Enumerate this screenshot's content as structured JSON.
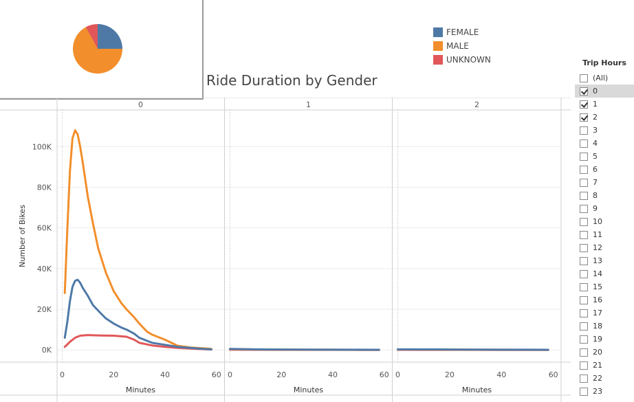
{
  "chart_data": {
    "type": "line",
    "title": "Ride Duration by Gender",
    "xlabel": "Minutes",
    "ylabel": "Number of Bikes",
    "ylim": [
      -6000,
      118000
    ],
    "xlim": [
      -2,
      63
    ],
    "yticks": [
      0,
      20000,
      40000,
      60000,
      80000,
      100000
    ],
    "ytick_labels": [
      "0K",
      "20K",
      "40K",
      "60K",
      "80K",
      "100K"
    ],
    "xticks": [
      0,
      20,
      40,
      60
    ],
    "xtick_labels": [
      "0",
      "20",
      "40",
      "60"
    ],
    "panel_variable": "Trip Hours",
    "panels": [
      {
        "label": "0",
        "series": [
          {
            "name": "FEMALE",
            "color": "#4e79a7",
            "points": [
              [
                1,
                6000
              ],
              [
                2,
                14000
              ],
              [
                3,
                24000
              ],
              [
                4,
                31000
              ],
              [
                5,
                34000
              ],
              [
                6,
                34500
              ],
              [
                7,
                33000
              ],
              [
                8,
                30500
              ],
              [
                10,
                26500
              ],
              [
                12,
                22000
              ],
              [
                15,
                18000
              ],
              [
                17,
                15500
              ],
              [
                20,
                13000
              ],
              [
                23,
                11000
              ],
              [
                25,
                10000
              ],
              [
                28,
                8000
              ],
              [
                30,
                6000
              ],
              [
                35,
                3500
              ],
              [
                40,
                2500
              ],
              [
                45,
                1500
              ],
              [
                50,
                1000
              ],
              [
                55,
                500
              ],
              [
                58,
                300
              ]
            ]
          },
          {
            "name": "MALE",
            "color": "#f28e2b",
            "points": [
              [
                1,
                28000
              ],
              [
                2,
                60000
              ],
              [
                3,
                88000
              ],
              [
                4,
                104000
              ],
              [
                5,
                108000
              ],
              [
                6,
                106000
              ],
              [
                7,
                100000
              ],
              [
                8,
                92000
              ],
              [
                10,
                75000
              ],
              [
                12,
                62000
              ],
              [
                14,
                50000
              ],
              [
                17,
                38000
              ],
              [
                20,
                29000
              ],
              [
                23,
                23000
              ],
              [
                25,
                20000
              ],
              [
                28,
                16000
              ],
              [
                30,
                13000
              ],
              [
                33,
                9000
              ],
              [
                35,
                7500
              ],
              [
                40,
                5000
              ],
              [
                45,
                2000
              ],
              [
                50,
                1200
              ],
              [
                55,
                800
              ],
              [
                58,
                500
              ]
            ]
          },
          {
            "name": "UNKNOWN",
            "color": "#e15759",
            "points": [
              [
                1,
                1500
              ],
              [
                3,
                4000
              ],
              [
                5,
                6000
              ],
              [
                7,
                7000
              ],
              [
                10,
                7300
              ],
              [
                12,
                7200
              ],
              [
                15,
                7100
              ],
              [
                20,
                7000
              ],
              [
                25,
                6500
              ],
              [
                28,
                5000
              ],
              [
                30,
                3500
              ],
              [
                35,
                2200
              ],
              [
                40,
                1500
              ],
              [
                45,
                1000
              ],
              [
                50,
                700
              ],
              [
                55,
                400
              ],
              [
                58,
                200
              ]
            ]
          }
        ]
      },
      {
        "label": "1",
        "series": [
          {
            "name": "FEMALE",
            "color": "#4e79a7",
            "points": [
              [
                0,
                500
              ],
              [
                10,
                300
              ],
              [
                20,
                200
              ],
              [
                30,
                150
              ],
              [
                40,
                120
              ],
              [
                50,
                100
              ],
              [
                58,
                80
              ]
            ]
          },
          {
            "name": "MALE",
            "color": "#f28e2b",
            "points": [
              [
                0,
                400
              ],
              [
                10,
                250
              ],
              [
                20,
                150
              ],
              [
                30,
                120
              ],
              [
                40,
                100
              ],
              [
                50,
                80
              ],
              [
                58,
                60
              ]
            ]
          },
          {
            "name": "UNKNOWN",
            "color": "#e15759",
            "points": [
              [
                0,
                100
              ],
              [
                10,
                80
              ],
              [
                20,
                60
              ],
              [
                30,
                50
              ],
              [
                40,
                40
              ],
              [
                50,
                30
              ],
              [
                58,
                20
              ]
            ]
          }
        ]
      },
      {
        "label": "2",
        "series": [
          {
            "name": "FEMALE",
            "color": "#4e79a7",
            "points": [
              [
                0,
                300
              ],
              [
                10,
                250
              ],
              [
                20,
                200
              ],
              [
                30,
                150
              ],
              [
                40,
                120
              ],
              [
                50,
                100
              ],
              [
                58,
                80
              ]
            ]
          },
          {
            "name": "MALE",
            "color": "#f28e2b",
            "points": [
              [
                0,
                250
              ],
              [
                10,
                200
              ],
              [
                20,
                150
              ],
              [
                30,
                120
              ],
              [
                40,
                100
              ],
              [
                50,
                80
              ],
              [
                58,
                60
              ]
            ]
          },
          {
            "name": "UNKNOWN",
            "color": "#e15759",
            "points": [
              [
                0,
                80
              ],
              [
                10,
                60
              ],
              [
                20,
                50
              ],
              [
                30,
                40
              ],
              [
                40,
                30
              ],
              [
                50,
                20
              ],
              [
                58,
                10
              ]
            ]
          }
        ]
      }
    ],
    "pie": {
      "slices": [
        {
          "name": "FEMALE",
          "value": 25,
          "color": "#4e79a7"
        },
        {
          "name": "MALE",
          "value": 67,
          "color": "#f28e2b"
        },
        {
          "name": "UNKNOWN",
          "value": 8,
          "color": "#e15759"
        }
      ]
    },
    "legend": [
      {
        "label": "FEMALE",
        "color": "#4e79a7"
      },
      {
        "label": "MALE",
        "color": "#f28e2b"
      },
      {
        "label": "UNKNOWN",
        "color": "#e15759"
      }
    ]
  },
  "filter": {
    "title": "Trip Hours",
    "items": [
      {
        "label": "(All)",
        "checked": false
      },
      {
        "label": "0",
        "checked": true,
        "selected": true
      },
      {
        "label": "1",
        "checked": true
      },
      {
        "label": "2",
        "checked": true
      },
      {
        "label": "3",
        "checked": false
      },
      {
        "label": "4",
        "checked": false
      },
      {
        "label": "5",
        "checked": false
      },
      {
        "label": "6",
        "checked": false
      },
      {
        "label": "7",
        "checked": false
      },
      {
        "label": "8",
        "checked": false
      },
      {
        "label": "9",
        "checked": false
      },
      {
        "label": "10",
        "checked": false
      },
      {
        "label": "11",
        "checked": false
      },
      {
        "label": "12",
        "checked": false
      },
      {
        "label": "13",
        "checked": false
      },
      {
        "label": "14",
        "checked": false
      },
      {
        "label": "15",
        "checked": false
      },
      {
        "label": "16",
        "checked": false
      },
      {
        "label": "17",
        "checked": false
      },
      {
        "label": "18",
        "checked": false
      },
      {
        "label": "19",
        "checked": false
      },
      {
        "label": "20",
        "checked": false
      },
      {
        "label": "21",
        "checked": false
      },
      {
        "label": "22",
        "checked": false
      },
      {
        "label": "23",
        "checked": false
      }
    ]
  }
}
